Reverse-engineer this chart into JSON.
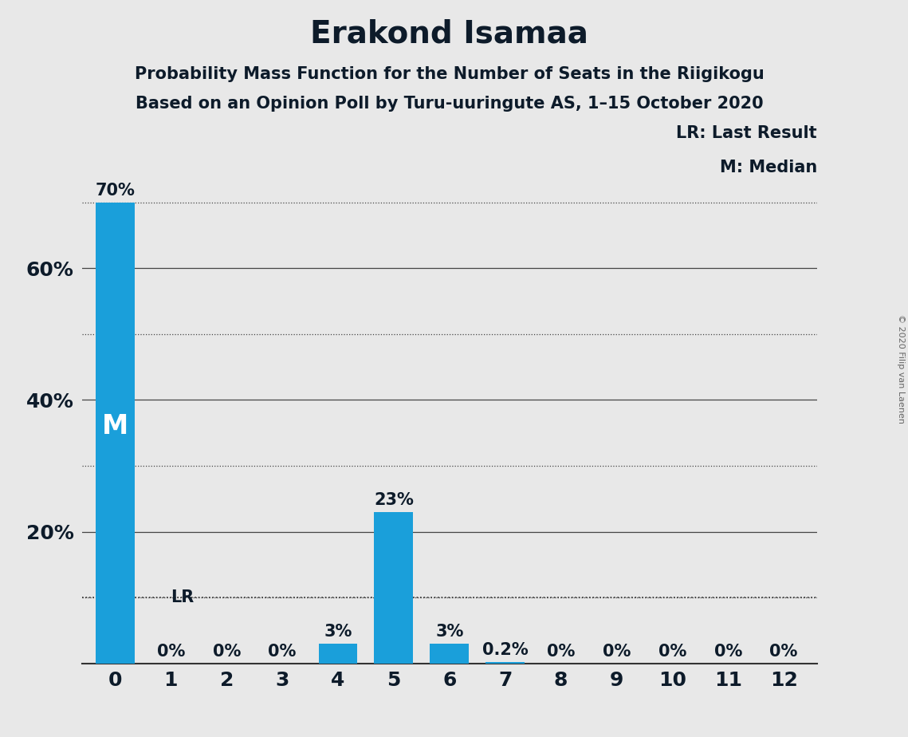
{
  "title": "Erakond Isamaa",
  "subtitle1": "Probability Mass Function for the Number of Seats in the Riigikogu",
  "subtitle2": "Based on an Opinion Poll by Turu-uuringute AS, 1–15 October 2020",
  "copyright": "© 2020 Filip van Laenen",
  "categories": [
    0,
    1,
    2,
    3,
    4,
    5,
    6,
    7,
    8,
    9,
    10,
    11,
    12
  ],
  "values": [
    0.7,
    0.0,
    0.0,
    0.0,
    0.03,
    0.23,
    0.03,
    0.002,
    0.0,
    0.0,
    0.0,
    0.0,
    0.0
  ],
  "labels": [
    "70%",
    "0%",
    "0%",
    "0%",
    "3%",
    "23%",
    "3%",
    "0.2%",
    "0%",
    "0%",
    "0%",
    "0%",
    "0%"
  ],
  "bar_color": "#1a9fda",
  "background_color": "#e8e8e8",
  "median_seat": 0,
  "lr_value": 0.1,
  "ylim": [
    0,
    0.75
  ],
  "solid_lines": [
    0.2,
    0.4,
    0.6
  ],
  "dotted_lines": [
    0.1,
    0.3,
    0.5,
    0.7
  ],
  "yticks": [
    0.2,
    0.4,
    0.6
  ],
  "ytick_labels": [
    "20%",
    "40%",
    "60%"
  ],
  "title_fontsize": 28,
  "subtitle_fontsize": 15,
  "axis_fontsize": 18,
  "label_fontsize": 15,
  "text_color": "#0d1b2a"
}
